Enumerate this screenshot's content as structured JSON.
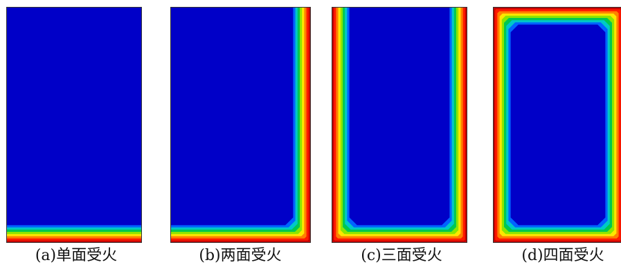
{
  "panels": [
    {
      "id": "a",
      "caption": "(a)单面受火",
      "heated_sides": [
        "bottom"
      ]
    },
    {
      "id": "b",
      "caption": "(b)两面受火",
      "heated_sides": [
        "right",
        "bottom"
      ]
    },
    {
      "id": "c",
      "caption": "(c)三面受火",
      "heated_sides": [
        "left",
        "right",
        "bottom"
      ]
    },
    {
      "id": "d",
      "caption": "(d)四面受火",
      "heated_sides": [
        "top",
        "left",
        "right",
        "bottom"
      ]
    }
  ],
  "colors": {
    "gradient_hot_to_cold": [
      "#c40000",
      "#ff1a00",
      "#ff8000",
      "#ffe600",
      "#8ce600",
      "#00c850",
      "#00c8c8",
      "#0064ff",
      "#0000c8"
    ],
    "core": "#0000c8",
    "border": "#333333"
  }
}
